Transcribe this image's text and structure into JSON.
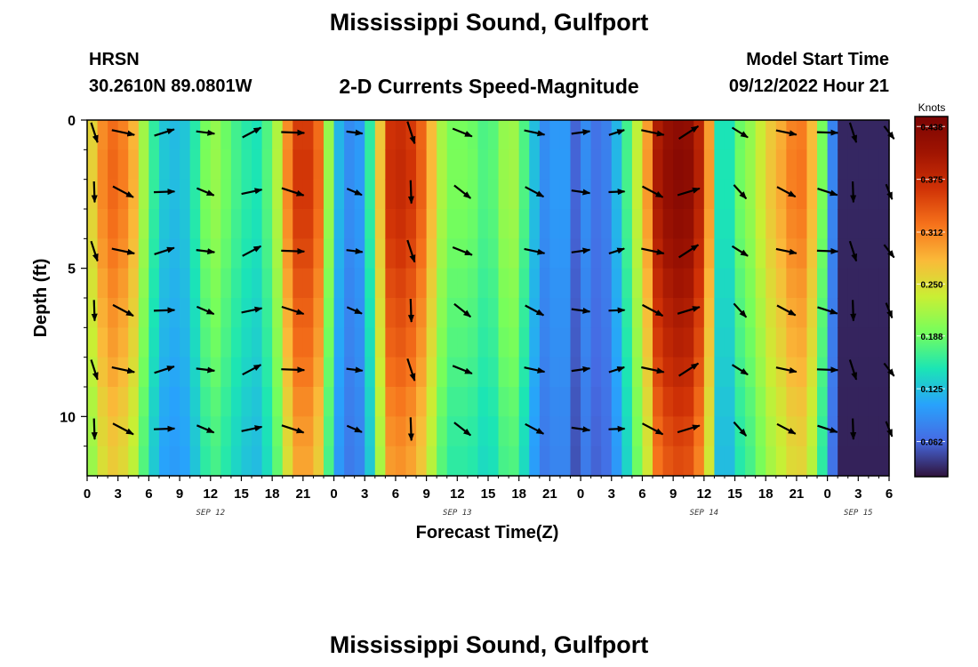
{
  "header": {
    "title": "Mississippi Sound, Gulfport",
    "station": "HRSN",
    "latlon": "30.2610N  89.0801W",
    "subtitle": "2-D Currents Speed-Magnitude",
    "model_start_label": "Model Start Time",
    "model_start_value": "09/12/2022 Hour 21"
  },
  "footer": {
    "title": "Mississippi Sound, Gulfport"
  },
  "chart_data": {
    "type": "heatmap",
    "title": "2-D Currents Speed-Magnitude",
    "xlabel": "Forecast Time(Z)",
    "ylabel": "Depth (ft)",
    "x_range_hours": [
      0,
      78
    ],
    "ylim": [
      0,
      12
    ],
    "x_tick_labels": [
      "0",
      "3",
      "6",
      "9",
      "12",
      "15",
      "18",
      "21",
      "0",
      "3",
      "6",
      "9",
      "12",
      "15",
      "18",
      "21",
      "0",
      "3",
      "6",
      "9",
      "12",
      "15",
      "18",
      "21",
      "0",
      "3",
      "6"
    ],
    "y_ticks": [
      {
        "value": 0,
        "label": "0"
      },
      {
        "value": 5,
        "label": "5"
      },
      {
        "value": 10,
        "label": "10"
      }
    ],
    "day_labels": [
      {
        "label": "SEP 12",
        "hour": 12
      },
      {
        "label": "SEP 13",
        "hour": 36
      },
      {
        "label": "SEP 14",
        "hour": 60
      },
      {
        "label": "SEP 15",
        "hour": 75
      }
    ],
    "colorbar": {
      "label": "Knots",
      "min": 0.02,
      "max": 0.45,
      "ticks": [
        "0.438",
        "0.375",
        "0.312",
        "0.250",
        "0.188",
        "0.125",
        "0.062"
      ],
      "tick_values": [
        0.438,
        0.375,
        0.312,
        0.25,
        0.188,
        0.125,
        0.062
      ]
    },
    "speed_profile_hours": [
      0,
      0.7,
      1.5,
      2.5,
      4,
      5,
      5.7,
      6.3,
      7,
      8,
      9.5,
      11,
      12,
      13.5,
      15,
      16.5,
      18,
      19,
      19.8,
      21,
      22.5,
      23.3,
      24,
      25,
      26,
      27,
      28,
      28.7,
      29.5,
      31,
      33,
      34,
      35,
      36,
      37,
      38,
      39,
      40,
      41,
      42,
      43,
      44,
      45,
      46,
      47.5,
      48,
      49,
      50,
      51,
      52,
      53,
      54.5,
      55,
      56,
      58,
      59,
      60,
      61,
      61.5,
      62,
      63,
      64,
      65,
      66,
      68,
      69,
      70,
      71,
      72,
      72.8,
      73.5,
      75,
      78
    ],
    "speed_profile_knots": [
      0.24,
      0.27,
      0.31,
      0.33,
      0.31,
      0.26,
      0.2,
      0.17,
      0.14,
      0.12,
      0.13,
      0.17,
      0.22,
      0.19,
      0.16,
      0.15,
      0.19,
      0.26,
      0.34,
      0.38,
      0.33,
      0.24,
      0.14,
      0.1,
      0.08,
      0.12,
      0.2,
      0.3,
      0.37,
      0.38,
      0.32,
      0.24,
      0.2,
      0.19,
      0.2,
      0.18,
      0.17,
      0.19,
      0.23,
      0.2,
      0.15,
      0.1,
      0.08,
      0.12,
      0.06,
      0.1,
      0.08,
      0.06,
      0.1,
      0.14,
      0.2,
      0.3,
      0.38,
      0.42,
      0.44,
      0.42,
      0.36,
      0.24,
      0.15,
      0.12,
      0.18,
      0.2,
      0.22,
      0.26,
      0.3,
      0.33,
      0.31,
      0.25,
      0.14,
      0.05,
      0.03,
      0.03,
      0.03
    ],
    "depth_factor_levels_ft": [
      0,
      2,
      4,
      6,
      8,
      10,
      12
    ],
    "depth_factor": [
      0.98,
      1.0,
      0.97,
      0.92,
      0.88,
      0.82,
      0.78
    ],
    "arrow_hours": [
      0.7,
      3.5,
      7.5,
      11.5,
      16,
      20,
      26,
      31.5,
      36.5,
      43.5,
      48,
      51.5,
      55,
      58.5,
      63.5,
      68,
      72,
      74.5,
      78
    ],
    "arrow_depths_ft": [
      0.3,
      2.3,
      4.3,
      6.3,
      8.3,
      10.3
    ],
    "arrow_angles_deg": [
      80,
      20,
      -10,
      15,
      -20,
      10,
      15,
      80,
      30,
      20,
      0,
      -10,
      20,
      -25,
      40,
      20,
      10,
      80,
      60
    ],
    "arrow_length_factor": [
      0.9,
      1.0,
      0.9,
      0.8,
      0.9,
      1.0,
      0.7,
      1.0,
      0.9,
      0.9,
      0.8,
      0.7,
      1.0,
      1.0,
      0.8,
      0.9,
      0.9,
      0.9,
      0.7
    ]
  }
}
